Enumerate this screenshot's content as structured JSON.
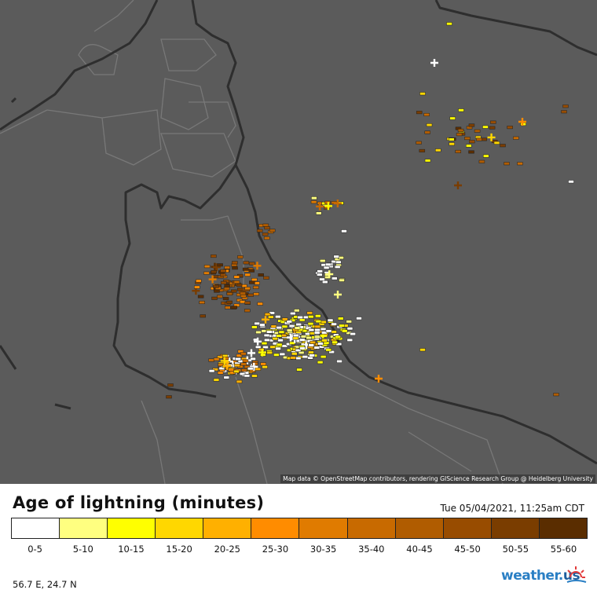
{
  "legend": {
    "title": "Age of lightning (minutes)",
    "timestamp": "Tue 05/04/2021, 11:25am CDT",
    "bins": [
      {
        "label": "0-5",
        "color": "#ffffff"
      },
      {
        "label": "5-10",
        "color": "#ffff80"
      },
      {
        "label": "10-15",
        "color": "#ffff00"
      },
      {
        "label": "15-20",
        "color": "#ffd700"
      },
      {
        "label": "20-25",
        "color": "#ffb000"
      },
      {
        "label": "25-30",
        "color": "#ff8c00"
      },
      {
        "label": "30-35",
        "color": "#e07b00"
      },
      {
        "label": "35-40",
        "color": "#c86a00"
      },
      {
        "label": "40-45",
        "color": "#b05c00"
      },
      {
        "label": "45-50",
        "color": "#984c00"
      },
      {
        "label": "50-55",
        "color": "#7a3d00"
      },
      {
        "label": "55-60",
        "color": "#5a2d00"
      }
    ]
  },
  "map": {
    "attribution": "Map data © OpenStreetMap contributors, rendering GIScience Research Group @ Heidelberg University",
    "land_color": "#5b5b5b",
    "coast_color": "#2e2e2e",
    "border_color": "#787878"
  },
  "footer": {
    "coordinates": "56.7 E, 24.7 N",
    "brand_main": "weather.",
    "brand_suffix": "us",
    "brand_color": "#2a7fc4"
  },
  "chart_data": {
    "type": "scatter",
    "marker_types": [
      "negative (−)",
      "positive (+)"
    ],
    "clusters": [
      {
        "area": "coast around 56.4E 24.3N",
        "dominant_age": "0-5 to 35-40"
      },
      {
        "area": "north-west of main cluster",
        "dominant_age": "40-55"
      },
      {
        "area": "north-east, over the Gulf of Oman",
        "dominant_age": "35-55"
      }
    ]
  }
}
